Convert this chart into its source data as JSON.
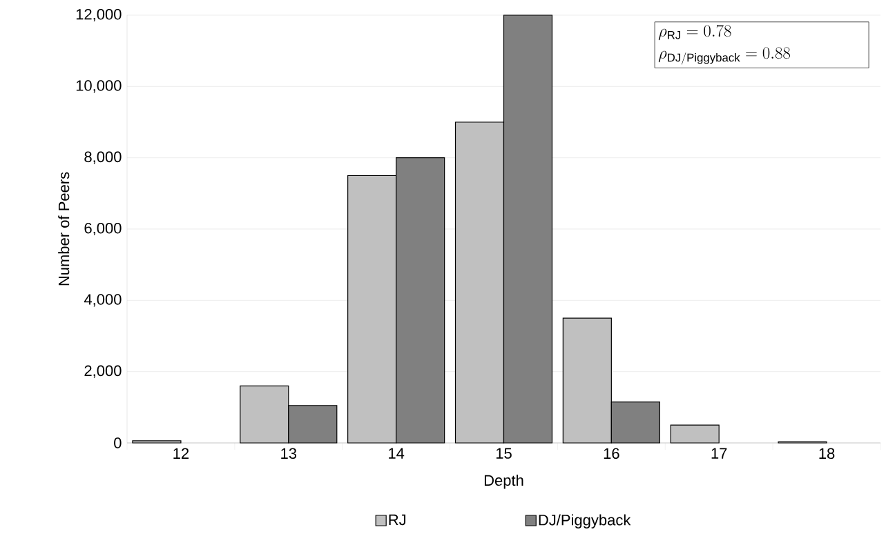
{
  "chart_data": {
    "type": "bar",
    "xlabel": "Depth",
    "ylabel": "Number of Peers",
    "categories": [
      "12",
      "13",
      "14",
      "15",
      "16",
      "17",
      "18"
    ],
    "series": [
      {
        "name": "RJ",
        "color": "#c0c0c0",
        "values": [
          60,
          1600,
          7500,
          9000,
          3500,
          500,
          30
        ]
      },
      {
        "name": "DJ/Piggyback",
        "color": "#808080",
        "values": [
          null,
          1050,
          8000,
          12000,
          1150,
          null,
          null
        ]
      }
    ],
    "ylim": [
      0,
      12000
    ],
    "yticks": [
      0,
      {
        "value": 2000,
        "label": "2,000"
      },
      {
        "value": 4000,
        "label": "4,000"
      },
      {
        "value": 6000,
        "label": "6,000"
      },
      {
        "value": 8000,
        "label": "8,000"
      },
      {
        "value": 10000,
        "label": "10,000"
      },
      {
        "value": 12000,
        "label": "12,000"
      }
    ],
    "grid": "y",
    "legend": "bottom",
    "annotations": [
      "\\rho_{\\mathrm{RJ}} = 0.78",
      "\\rho_{\\mathrm{DJ/Piggyback}} = 0.88"
    ]
  }
}
